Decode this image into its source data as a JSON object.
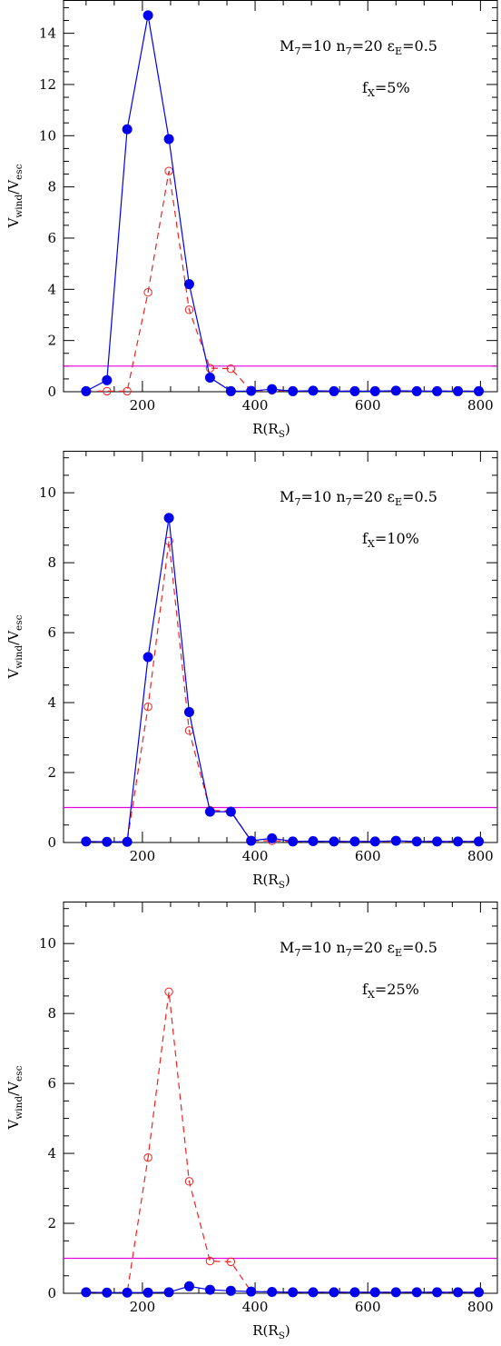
{
  "chart_data": [
    {
      "type": "line",
      "panel": 1,
      "xlabel": "R(R_S)",
      "ylabel": "V_wind/V_esc",
      "xlim": [
        60,
        830
      ],
      "ylim": [
        0,
        15.3
      ],
      "xticks": [
        200,
        400,
        600,
        800
      ],
      "yticks": [
        0,
        2,
        4,
        6,
        8,
        10,
        12,
        14
      ],
      "annotation_line1": "M_7=10  n_7=20  ε_E=0.5",
      "annotation_line2": "f_X=5%",
      "reference_line": {
        "y": 1.0,
        "color": "#e000e0"
      },
      "x": [
        100,
        137,
        173,
        210,
        247,
        283,
        320,
        357,
        393,
        430,
        467,
        503,
        540,
        577,
        613,
        650,
        687,
        723,
        760,
        797
      ],
      "series": [
        {
          "style": "filled-solid",
          "color": "#0000ee",
          "values": [
            0.02,
            0.45,
            10.25,
            14.7,
            9.87,
            4.2,
            0.55,
            0.02,
            0.03,
            0.1,
            0.02,
            0.04,
            0.02,
            0.02,
            0.02,
            0.04,
            0.02,
            0.02,
            0.02,
            0.02
          ]
        },
        {
          "style": "open-dashed",
          "color": "#ee2222",
          "values": [
            0.02,
            0.02,
            0.02,
            3.88,
            8.62,
            3.2,
            0.92,
            0.9,
            0.05,
            0.05,
            0.03,
            0.03,
            0.03,
            0.03,
            0.03,
            0.03,
            0.03,
            0.03,
            0.03,
            0.03
          ]
        }
      ]
    },
    {
      "type": "line",
      "panel": 2,
      "xlabel": "R(R_S)",
      "ylabel": "V_wind/V_esc",
      "xlim": [
        60,
        830
      ],
      "ylim": [
        0,
        11.2
      ],
      "xticks": [
        200,
        400,
        600,
        800
      ],
      "yticks": [
        0,
        2,
        4,
        6,
        8,
        10
      ],
      "annotation_line1": "M_7=10  n_7=20  ε_E=0.5",
      "annotation_line2": "f_X=10%",
      "reference_line": {
        "y": 1.0,
        "color": "#e000e0"
      },
      "x": [
        100,
        137,
        173,
        210,
        247,
        283,
        320,
        357,
        393,
        430,
        467,
        503,
        540,
        577,
        613,
        650,
        687,
        723,
        760,
        797
      ],
      "series": [
        {
          "style": "filled-solid",
          "color": "#0000ee",
          "values": [
            0.03,
            0.02,
            0.02,
            5.3,
            9.28,
            3.73,
            0.88,
            0.88,
            0.05,
            0.12,
            0.03,
            0.04,
            0.03,
            0.03,
            0.03,
            0.05,
            0.03,
            0.03,
            0.03,
            0.03
          ]
        },
        {
          "style": "open-dashed",
          "color": "#ee2222",
          "values": [
            0.02,
            0.02,
            0.02,
            3.88,
            8.62,
            3.2,
            0.92,
            0.9,
            0.05,
            0.05,
            0.03,
            0.03,
            0.03,
            0.03,
            0.03,
            0.03,
            0.03,
            0.03,
            0.03,
            0.03
          ]
        }
      ]
    },
    {
      "type": "line",
      "panel": 3,
      "xlabel": "R(R_S)",
      "ylabel": "V_wind/V_esc",
      "xlim": [
        60,
        830
      ],
      "ylim": [
        0,
        11.2
      ],
      "xticks": [
        200,
        400,
        600,
        800
      ],
      "yticks": [
        0,
        2,
        4,
        6,
        8,
        10
      ],
      "annotation_line1": "M_7=10  n_7=20  ε_E=0.5",
      "annotation_line2": "f_X=25%",
      "reference_line": {
        "y": 1.0,
        "color": "#e000e0"
      },
      "x": [
        100,
        137,
        173,
        210,
        247,
        283,
        320,
        357,
        393,
        430,
        467,
        503,
        540,
        577,
        613,
        650,
        687,
        723,
        760,
        797
      ],
      "series": [
        {
          "style": "filled-solid",
          "color": "#0000ee",
          "values": [
            0.03,
            0.02,
            0.02,
            0.02,
            0.03,
            0.2,
            0.1,
            0.07,
            0.05,
            0.04,
            0.03,
            0.03,
            0.03,
            0.03,
            0.03,
            0.03,
            0.03,
            0.03,
            0.03,
            0.03
          ]
        },
        {
          "style": "open-dashed",
          "color": "#ee2222",
          "values": [
            0.02,
            0.02,
            0.02,
            3.88,
            8.62,
            3.2,
            0.92,
            0.9,
            0.05,
            0.05,
            0.03,
            0.03,
            0.03,
            0.03,
            0.03,
            0.03,
            0.03,
            0.03,
            0.03,
            0.03
          ]
        }
      ]
    }
  ]
}
